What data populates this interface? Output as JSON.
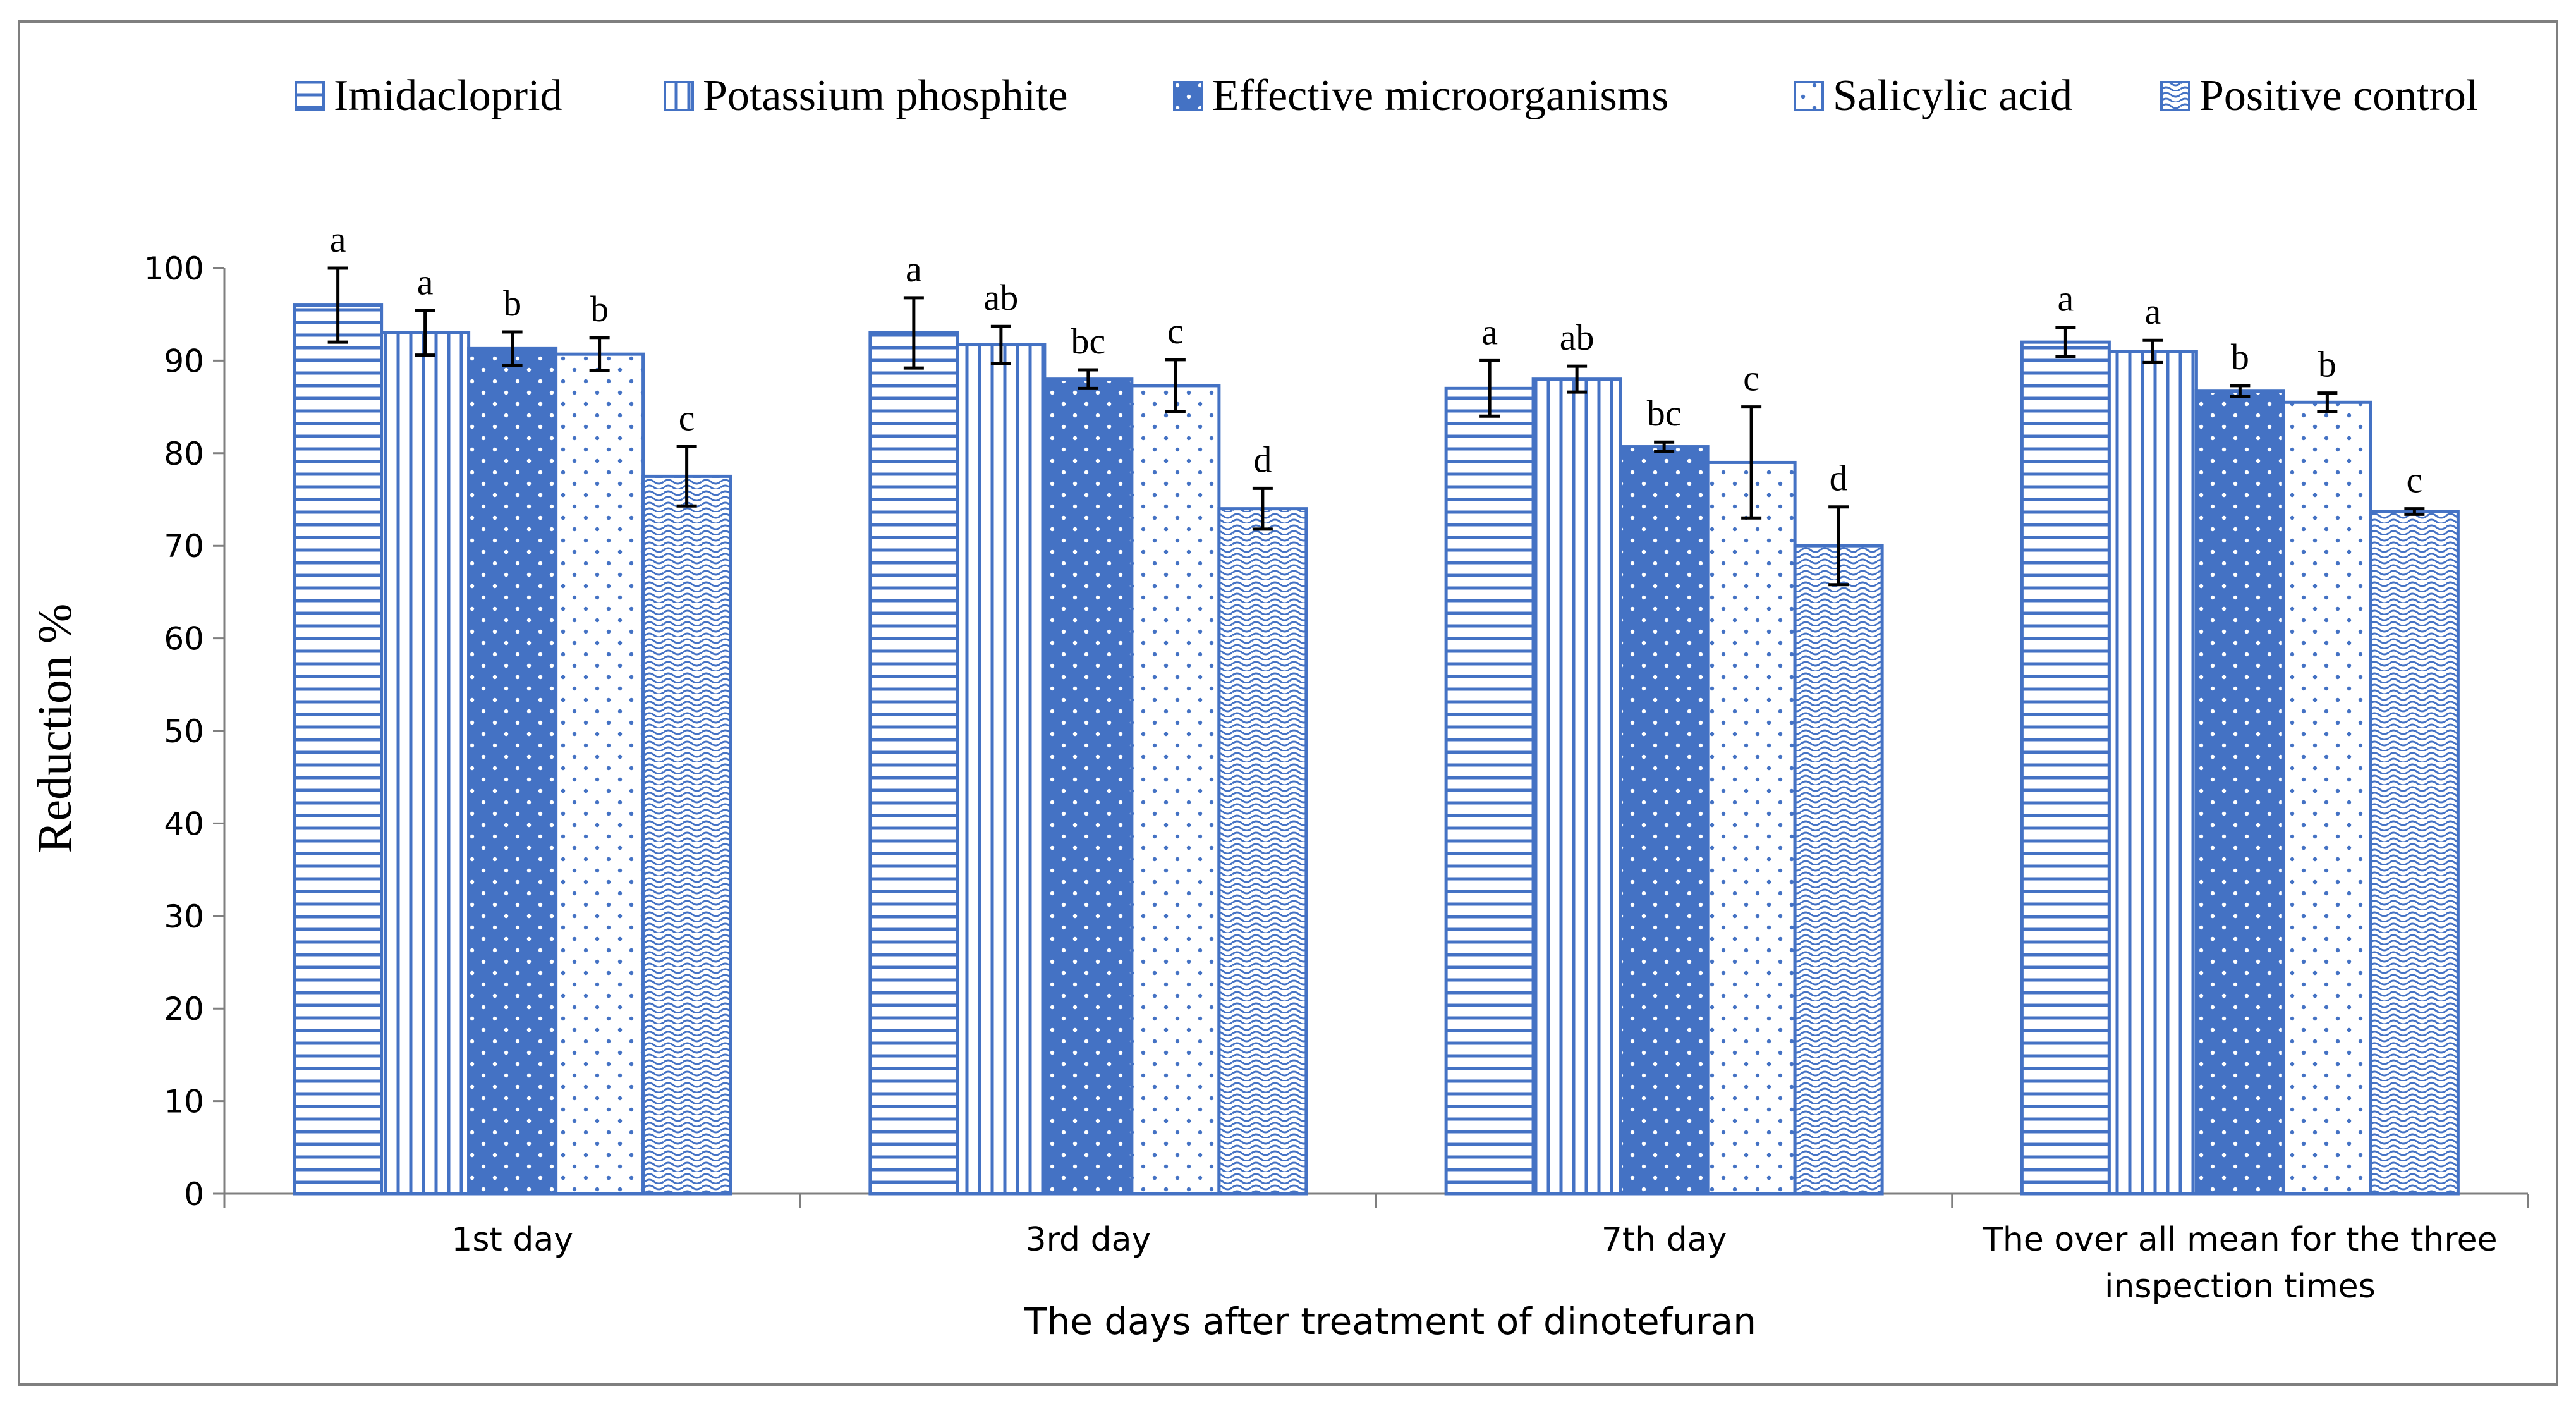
{
  "chart_data": {
    "type": "bar",
    "title": "",
    "xlabel": "The days after treatment of dinotefuran",
    "ylabel": "Reduction %",
    "ylim": [
      0,
      100
    ],
    "yticks": [
      0,
      10,
      20,
      30,
      40,
      50,
      60,
      70,
      80,
      90,
      100
    ],
    "grid": false,
    "legend_position": "top",
    "categories": [
      [
        "1st day"
      ],
      [
        "3rd day"
      ],
      [
        "7th day"
      ],
      [
        "The over all mean for the three",
        "inspection times"
      ]
    ],
    "series": [
      {
        "name": "Imidacloprid",
        "pattern": "horizontal-lines",
        "values": [
          96.0,
          93.0,
          87.0,
          92.0
        ],
        "errors": [
          4.0,
          3.8,
          3.0,
          1.6
        ],
        "letters": [
          "a",
          "a",
          "a",
          "a"
        ]
      },
      {
        "name": "Potassium phosphite",
        "pattern": "vertical-lines",
        "values": [
          93.0,
          91.7,
          88.0,
          91.0
        ],
        "errors": [
          2.4,
          2.0,
          1.4,
          1.2
        ],
        "letters": [
          "a",
          "ab",
          "ab",
          "a"
        ]
      },
      {
        "name": "Effective microorganisms",
        "pattern": "solid-dots",
        "values": [
          91.3,
          88.0,
          80.7,
          86.7
        ],
        "errors": [
          1.8,
          1.0,
          0.5,
          0.6
        ],
        "letters": [
          "b",
          "bc",
          "bc",
          "b"
        ]
      },
      {
        "name": "Salicylic acid",
        "pattern": "light-dots",
        "values": [
          90.7,
          87.3,
          79.0,
          85.5
        ],
        "errors": [
          1.8,
          2.8,
          6.0,
          1.0
        ],
        "letters": [
          "b",
          "c",
          "c",
          "b"
        ]
      },
      {
        "name": "Positive control",
        "pattern": "waves",
        "values": [
          77.5,
          74.0,
          70.0,
          73.7
        ],
        "errors": [
          3.2,
          2.2,
          4.2,
          0.3
        ],
        "letters": [
          "c",
          "d",
          "d",
          "c"
        ]
      }
    ]
  },
  "colors": {
    "bar_stroke": "#4472c4",
    "bar_fill_solid": "#4472c4",
    "axis": "#7f7f7f",
    "frame": "#7f7f7f",
    "text": "#000000"
  }
}
